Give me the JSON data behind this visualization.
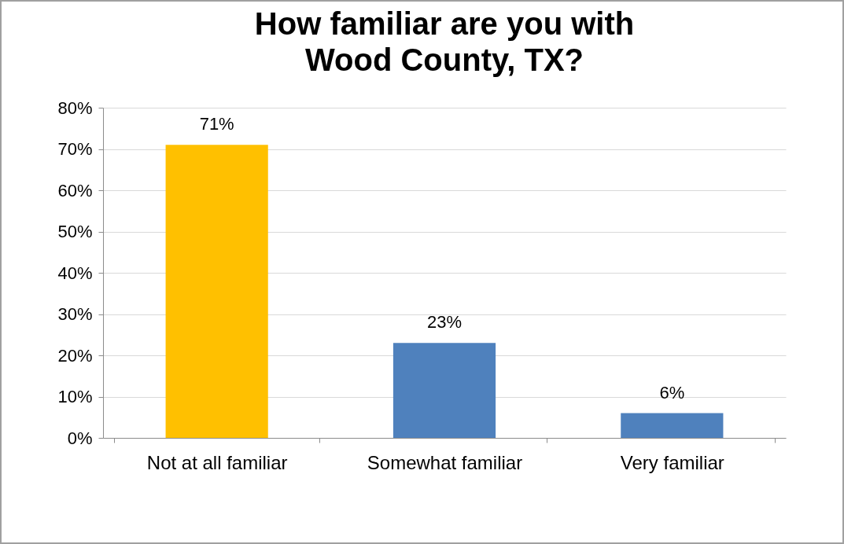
{
  "chart_data": {
    "type": "bar",
    "title": "How familiar are you with\nWood County, TX?",
    "categories": [
      "Not at all familiar",
      "Somewhat familiar",
      "Very familiar"
    ],
    "values": [
      71,
      23,
      6
    ],
    "colors": [
      "#ffc000",
      "#4f81bd",
      "#4f81bd"
    ],
    "value_labels": [
      "71%",
      "23%",
      "6%"
    ],
    "ylim": [
      0,
      80
    ],
    "yticks": [
      {
        "value": 0,
        "label": "0%"
      },
      {
        "value": 10,
        "label": "10%"
      },
      {
        "value": 20,
        "label": "20%"
      },
      {
        "value": 30,
        "label": "30%"
      },
      {
        "value": 40,
        "label": "40%"
      },
      {
        "value": 50,
        "label": "50%"
      },
      {
        "value": 60,
        "label": "60%"
      },
      {
        "value": 70,
        "label": "70%"
      },
      {
        "value": 80,
        "label": "80%"
      }
    ],
    "grid": "y"
  }
}
